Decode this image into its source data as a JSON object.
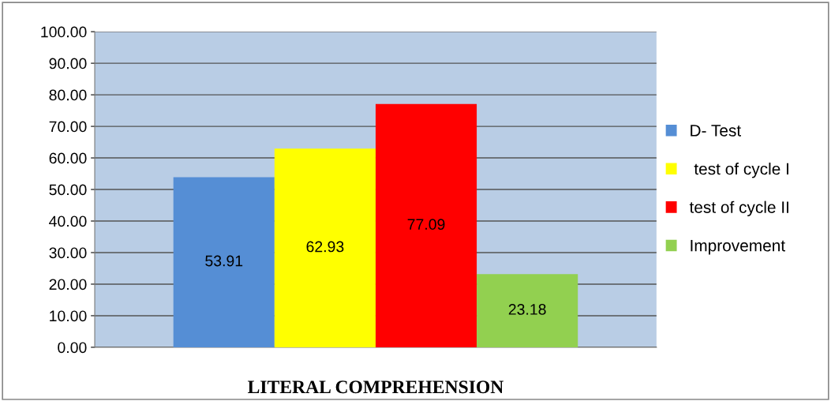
{
  "chart_data": {
    "type": "bar",
    "categories": [
      "LITERAL COMPREHENSION"
    ],
    "series": [
      {
        "name": "D- Test",
        "color": "#558ed5",
        "values": [
          53.91
        ]
      },
      {
        "name": " test of cycle I",
        "color": "#ffff00",
        "values": [
          62.93
        ]
      },
      {
        "name": "test of cycle II",
        "color": "#ff0000",
        "values": [
          77.09
        ]
      },
      {
        "name": "Improvement",
        "color": "#92d050",
        "values": [
          23.18
        ]
      }
    ],
    "ylim": [
      0,
      100
    ],
    "yticks": [
      {
        "value": 0,
        "label": "0.00"
      },
      {
        "value": 10,
        "label": "10.00"
      },
      {
        "value": 20,
        "label": "20.00"
      },
      {
        "value": 30,
        "label": "30.00"
      },
      {
        "value": 40,
        "label": "40.00"
      },
      {
        "value": 50,
        "label": "50.00"
      },
      {
        "value": 60,
        "label": "60.00"
      },
      {
        "value": 70,
        "label": "70.00"
      },
      {
        "value": 80,
        "label": "80.00"
      },
      {
        "value": 90,
        "label": "90.00"
      },
      {
        "value": 100,
        "label": "100.00"
      }
    ],
    "grid": "y",
    "legend": "right",
    "data_labels": true
  }
}
